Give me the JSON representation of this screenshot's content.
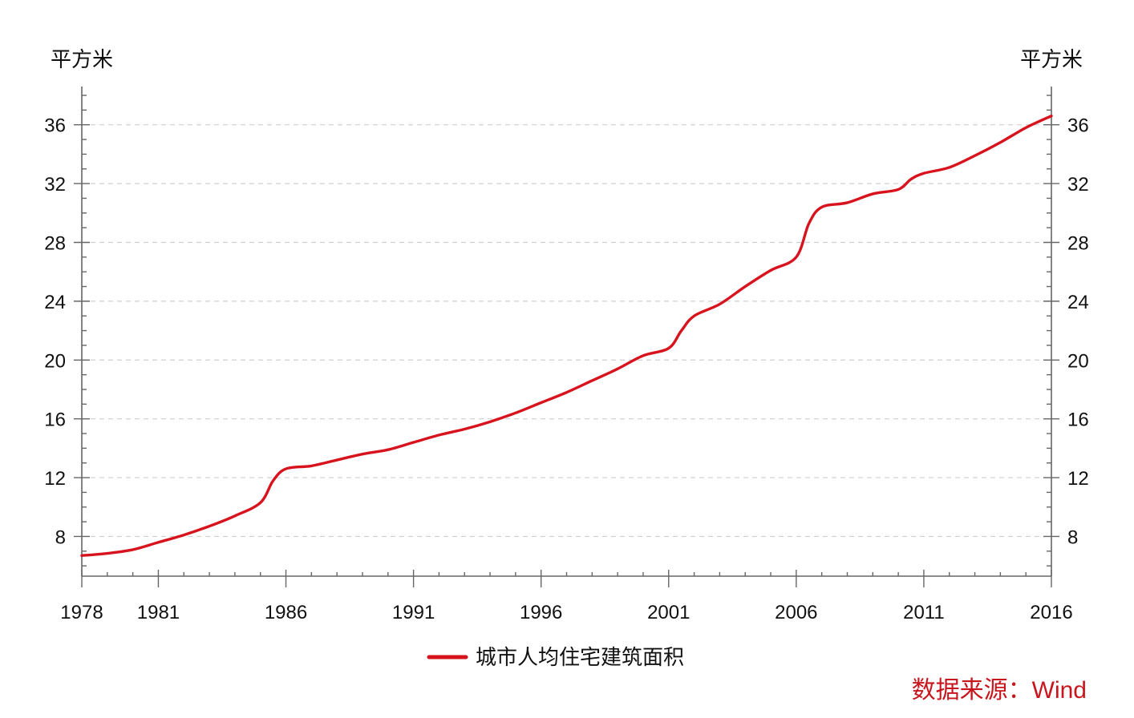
{
  "chart_data": {
    "type": "line",
    "title": "",
    "xlabel": "",
    "ylabel_left": "平方米",
    "ylabel_right": "平方米",
    "xlim": [
      1978,
      2016
    ],
    "ylim": [
      5.3,
      38.6
    ],
    "x_ticks": [
      1978,
      1981,
      1986,
      1991,
      1996,
      2001,
      2006,
      2011,
      2016
    ],
    "y_ticks": [
      8,
      12,
      16,
      20,
      24,
      28,
      32,
      36
    ],
    "grid": true,
    "legend_position": "bottom-center",
    "series": [
      {
        "name": "城市人均住宅建筑面积",
        "color": "#d7141e",
        "x": [
          1978,
          1979,
          1980,
          1981,
          1982,
          1983,
          1984,
          1985,
          1985.5,
          1986,
          1987,
          1988,
          1989,
          1990,
          1991,
          1992,
          1993,
          1994,
          1995,
          1996,
          1997,
          1998,
          1999,
          2000,
          2001,
          2001.5,
          2002,
          2003,
          2004,
          2005,
          2006,
          2006.5,
          2007,
          2008,
          2009,
          2010,
          2010.5,
          2011,
          2012,
          2013,
          2014,
          2015,
          2016
        ],
        "y": [
          6.7,
          6.85,
          7.1,
          7.6,
          8.1,
          8.7,
          9.4,
          10.3,
          11.8,
          12.6,
          12.8,
          13.2,
          13.6,
          13.9,
          14.4,
          14.9,
          15.3,
          15.8,
          16.4,
          17.1,
          17.8,
          18.6,
          19.4,
          20.3,
          20.8,
          22.0,
          23.0,
          23.8,
          25.0,
          26.1,
          27.0,
          29.3,
          30.4,
          30.7,
          31.3,
          31.6,
          32.3,
          32.7,
          33.1,
          33.9,
          34.8,
          35.8,
          36.6
        ]
      }
    ]
  },
  "source": {
    "text": "数据来源：Wind"
  }
}
